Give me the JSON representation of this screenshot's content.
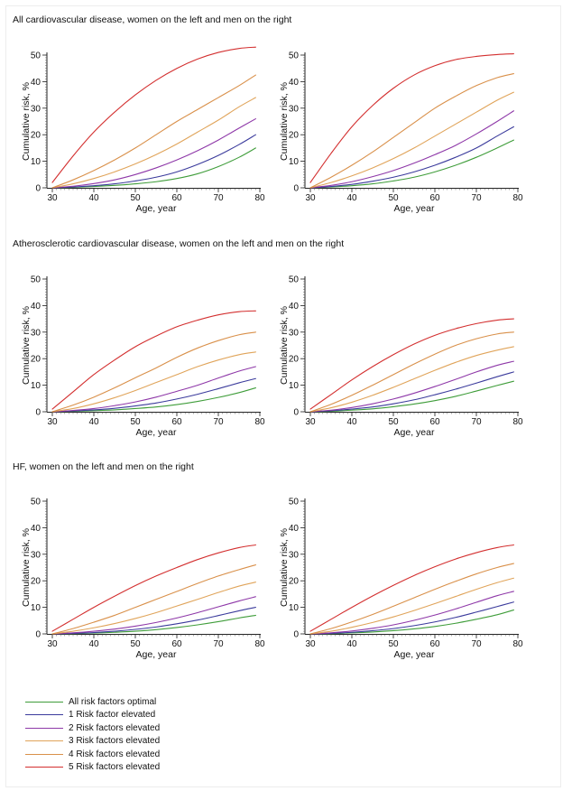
{
  "colors": {
    "optimal": "#3f9d3a",
    "one": "#3b3b9c",
    "two": "#8e38a8",
    "three": "#e0a45a",
    "four": "#d9904a",
    "five": "#d32f2f"
  },
  "sections": [
    {
      "title": "All cardiovascular disease, women on the left and men on the right"
    },
    {
      "title": "Atherosclerotic cardiovascular disease, women on the left and men on the right"
    },
    {
      "title": "HF, women on the left and men on the right"
    }
  ],
  "legend": [
    {
      "label": "All risk factors optimal",
      "color_key": "optimal"
    },
    {
      "label": "1 Risk factor elevated",
      "color_key": "one"
    },
    {
      "label": "2 Risk factors elevated",
      "color_key": "two"
    },
    {
      "label": "3 Risk factors elevated",
      "color_key": "three"
    },
    {
      "label": "4 Risk factors elevated",
      "color_key": "four"
    },
    {
      "label": "5 Risk factors elevated",
      "color_key": "five"
    }
  ],
  "chart_data": [
    {
      "type": "line",
      "xlabel": "Age, year",
      "ylabel": "Cumulative risk, %",
      "xlim": [
        30,
        80
      ],
      "ylim": [
        0,
        50
      ],
      "xticks": [
        "30",
        "40",
        "50",
        "60",
        "70",
        "80"
      ],
      "yticks": [
        "0",
        "10",
        "20",
        "30",
        "40",
        "50"
      ],
      "x": [
        30,
        35,
        40,
        45,
        50,
        55,
        60,
        65,
        70,
        75,
        79
      ],
      "series": [
        {
          "name": "All risk factors optimal",
          "values": [
            0,
            0.2,
            0.5,
            0.9,
            1.5,
            2.3,
            3.5,
            5.3,
            8,
            11.5,
            15
          ]
        },
        {
          "name": "1 Risk factor elevated",
          "values": [
            0,
            0.3,
            0.8,
            1.5,
            2.6,
            4,
            6,
            8.8,
            12.2,
            16.3,
            20
          ]
        },
        {
          "name": "2 Risk factors elevated",
          "values": [
            0,
            0.6,
            1.6,
            3,
            5,
            7.5,
            10.5,
            14,
            18,
            22.5,
            26
          ]
        },
        {
          "name": "3 Risk factors elevated",
          "values": [
            0,
            1.5,
            3.5,
            6,
            9,
            12.5,
            16.5,
            21,
            25.5,
            30.5,
            34
          ]
        },
        {
          "name": "4 Risk factors elevated",
          "values": [
            0,
            3,
            6.5,
            10.5,
            15,
            20,
            25,
            29.5,
            34,
            38.5,
            42.5
          ]
        },
        {
          "name": "5 Risk factors elevated",
          "values": [
            2,
            12,
            21,
            28.5,
            35,
            40.5,
            45,
            48.5,
            51,
            52.5,
            53
          ]
        }
      ]
    },
    {
      "type": "line",
      "xlabel": "Age, year",
      "ylabel": "Cumulative risk, %",
      "xlim": [
        30,
        80
      ],
      "ylim": [
        0,
        50
      ],
      "xticks": [
        "30",
        "40",
        "50",
        "60",
        "70",
        "80"
      ],
      "yticks": [
        "0",
        "10",
        "20",
        "30",
        "40",
        "50"
      ],
      "x": [
        30,
        35,
        40,
        45,
        50,
        55,
        60,
        65,
        70,
        75,
        79
      ],
      "series": [
        {
          "name": "All risk factors optimal",
          "values": [
            0,
            0.3,
            0.8,
            1.5,
            2.6,
            4,
            6,
            8.5,
            11.5,
            15,
            18
          ]
        },
        {
          "name": "1 Risk factor elevated",
          "values": [
            0,
            0.5,
            1.3,
            2.5,
            4,
            6,
            8.5,
            11.5,
            15,
            19.5,
            23
          ]
        },
        {
          "name": "2 Risk factors elevated",
          "values": [
            0,
            0.9,
            2.3,
            4.2,
            6.5,
            9.3,
            12.5,
            16,
            20.3,
            25,
            29
          ]
        },
        {
          "name": "3 Risk factors elevated",
          "values": [
            0,
            2,
            4.5,
            7.5,
            11,
            15,
            19.5,
            24,
            28.5,
            33,
            36
          ]
        },
        {
          "name": "4 Risk factors elevated",
          "values": [
            0,
            4,
            8.5,
            13.5,
            19,
            24.5,
            30,
            34.5,
            38.5,
            41.5,
            43
          ]
        },
        {
          "name": "5 Risk factors elevated",
          "values": [
            2,
            13,
            23,
            31,
            37.5,
            42.5,
            46,
            48.3,
            49.5,
            50.2,
            50.5
          ]
        }
      ]
    },
    {
      "type": "line",
      "xlabel": "Age, year",
      "ylabel": "Cumulative risk, %",
      "xlim": [
        30,
        80
      ],
      "ylim": [
        0,
        50
      ],
      "xticks": [
        "30",
        "40",
        "50",
        "60",
        "70",
        "80"
      ],
      "yticks": [
        "0",
        "10",
        "20",
        "30",
        "40",
        "50"
      ],
      "x": [
        30,
        35,
        40,
        45,
        50,
        55,
        60,
        65,
        70,
        75,
        79
      ],
      "series": [
        {
          "name": "All risk factors optimal",
          "values": [
            0,
            0.2,
            0.4,
            0.7,
            1.2,
            1.8,
            2.7,
            3.9,
            5.4,
            7.2,
            9
          ]
        },
        {
          "name": "1 Risk factor elevated",
          "values": [
            0,
            0.3,
            0.7,
            1.3,
            2.2,
            3.3,
            4.8,
            6.6,
            8.7,
            10.9,
            12.5
          ]
        },
        {
          "name": "2 Risk factors elevated",
          "values": [
            0,
            0.5,
            1.2,
            2.3,
            3.7,
            5.5,
            7.7,
            10,
            12.7,
            15.3,
            17
          ]
        },
        {
          "name": "3 Risk factors elevated",
          "values": [
            0,
            1.2,
            3,
            5.3,
            8,
            11,
            14,
            17,
            19.5,
            21.5,
            22.5
          ]
        },
        {
          "name": "4 Risk factors elevated",
          "values": [
            0,
            2.5,
            5.5,
            9,
            12.8,
            16.5,
            20.5,
            24,
            26.8,
            29,
            30
          ]
        },
        {
          "name": "5 Risk factors elevated",
          "values": [
            1,
            7.5,
            14,
            19.5,
            24.5,
            28.5,
            32,
            34.5,
            36.5,
            37.7,
            38
          ]
        }
      ]
    },
    {
      "type": "line",
      "xlabel": "Age, year",
      "ylabel": "Cumulative risk, %",
      "xlim": [
        30,
        80
      ],
      "ylim": [
        0,
        50
      ],
      "xticks": [
        "30",
        "40",
        "50",
        "60",
        "70",
        "80"
      ],
      "yticks": [
        "0",
        "10",
        "20",
        "30",
        "40",
        "50"
      ],
      "x": [
        30,
        35,
        40,
        45,
        50,
        55,
        60,
        65,
        70,
        75,
        79
      ],
      "series": [
        {
          "name": "All risk factors optimal",
          "values": [
            0,
            0.2,
            0.6,
            1.1,
            1.9,
            2.9,
            4.2,
            5.8,
            7.8,
            9.9,
            11.5
          ]
        },
        {
          "name": "1 Risk factor elevated",
          "values": [
            0,
            0.4,
            1,
            1.8,
            3,
            4.5,
            6.4,
            8.5,
            10.8,
            13.2,
            15
          ]
        },
        {
          "name": "2 Risk factors elevated",
          "values": [
            0,
            0.6,
            1.6,
            3,
            4.8,
            7,
            9.5,
            12.2,
            15,
            17.5,
            19
          ]
        },
        {
          "name": "3 Risk factors elevated",
          "values": [
            0,
            1.5,
            3.6,
            6.2,
            9.2,
            12.4,
            15.6,
            18.6,
            21.2,
            23.2,
            24.5
          ]
        },
        {
          "name": "4 Risk factors elevated",
          "values": [
            0,
            2.8,
            6.2,
            10,
            14,
            18,
            21.7,
            25,
            27.5,
            29.3,
            30
          ]
        },
        {
          "name": "5 Risk factors elevated",
          "values": [
            1,
            6.5,
            12,
            17,
            21.5,
            25.5,
            28.8,
            31.3,
            33.2,
            34.5,
            35
          ]
        }
      ]
    },
    {
      "type": "line",
      "xlabel": "Age, year",
      "ylabel": "Cumulative risk, %",
      "xlim": [
        30,
        80
      ],
      "ylim": [
        0,
        50
      ],
      "xticks": [
        "30",
        "40",
        "50",
        "60",
        "70",
        "80"
      ],
      "yticks": [
        "0",
        "10",
        "20",
        "30",
        "40",
        "50"
      ],
      "x": [
        30,
        35,
        40,
        45,
        50,
        55,
        60,
        65,
        70,
        75,
        79
      ],
      "series": [
        {
          "name": "All risk factors optimal",
          "values": [
            0,
            0.1,
            0.3,
            0.6,
            1,
            1.6,
            2.4,
            3.4,
            4.6,
            6,
            7
          ]
        },
        {
          "name": "1 Risk factor elevated",
          "values": [
            0,
            0.2,
            0.5,
            1,
            1.7,
            2.6,
            3.8,
            5.2,
            6.9,
            8.7,
            10
          ]
        },
        {
          "name": "2 Risk factors elevated",
          "values": [
            0,
            0.4,
            1,
            1.8,
            2.9,
            4.3,
            6,
            8,
            10.2,
            12.4,
            14
          ]
        },
        {
          "name": "3 Risk factors elevated",
          "values": [
            0,
            1,
            2.3,
            3.9,
            5.8,
            8,
            10.5,
            13,
            15.6,
            18,
            19.5
          ]
        },
        {
          "name": "4 Risk factors elevated",
          "values": [
            0,
            2,
            4.4,
            7,
            10,
            13,
            16,
            19,
            21.8,
            24.2,
            26
          ]
        },
        {
          "name": "5 Risk factors elevated",
          "values": [
            1,
            5.5,
            10,
            14.2,
            18.2,
            21.8,
            25,
            28,
            30.5,
            32.5,
            33.5
          ]
        }
      ]
    },
    {
      "type": "line",
      "xlabel": "Age, year",
      "ylabel": "Cumulative risk, %",
      "xlim": [
        30,
        80
      ],
      "ylim": [
        0,
        50
      ],
      "xticks": [
        "30",
        "40",
        "50",
        "60",
        "70",
        "80"
      ],
      "yticks": [
        "0",
        "10",
        "20",
        "30",
        "40",
        "50"
      ],
      "x": [
        30,
        35,
        40,
        45,
        50,
        55,
        60,
        65,
        70,
        75,
        79
      ],
      "series": [
        {
          "name": "All risk factors optimal",
          "values": [
            0,
            0.1,
            0.4,
            0.7,
            1.2,
            1.9,
            2.8,
            4,
            5.5,
            7.2,
            9
          ]
        },
        {
          "name": "1 Risk factor elevated",
          "values": [
            0,
            0.2,
            0.6,
            1.2,
            2,
            3.1,
            4.5,
            6.2,
            8.2,
            10.3,
            12
          ]
        },
        {
          "name": "2 Risk factors elevated",
          "values": [
            0,
            0.4,
            1.1,
            2.1,
            3.4,
            5.1,
            7.1,
            9.4,
            11.9,
            14.4,
            16
          ]
        },
        {
          "name": "3 Risk factors elevated",
          "values": [
            0,
            1,
            2.5,
            4.3,
            6.4,
            8.8,
            11.4,
            14.1,
            16.8,
            19.3,
            21
          ]
        },
        {
          "name": "4 Risk factors elevated",
          "values": [
            0,
            2,
            4.5,
            7.3,
            10.4,
            13.6,
            16.8,
            19.8,
            22.6,
            25,
            26.5
          ]
        },
        {
          "name": "5 Risk factors elevated",
          "values": [
            1,
            5.5,
            10,
            14.3,
            18.3,
            22,
            25.3,
            28.2,
            30.6,
            32.5,
            33.5
          ]
        }
      ]
    }
  ]
}
